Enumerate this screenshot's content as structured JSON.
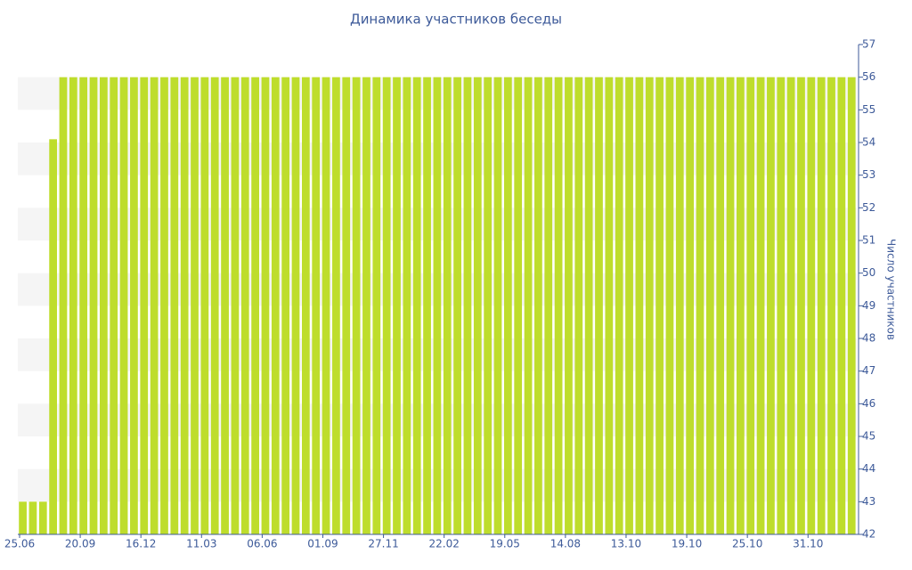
{
  "chart_data": {
    "type": "bar",
    "title": "Динамика участников беседы",
    "y_axis_label": "Число участников",
    "color": "#bedd2c",
    "categories": [
      "25.06",
      null,
      null,
      null,
      null,
      null,
      "20.09",
      null,
      null,
      null,
      null,
      null,
      "16.12",
      null,
      null,
      null,
      null,
      null,
      "11.03",
      null,
      null,
      null,
      null,
      null,
      "06.06",
      null,
      null,
      null,
      null,
      null,
      "01.09",
      null,
      null,
      null,
      null,
      null,
      "27.11",
      null,
      null,
      null,
      null,
      null,
      "22.02",
      null,
      null,
      null,
      null,
      null,
      "19.05",
      null,
      null,
      null,
      null,
      null,
      "14.08",
      null,
      null,
      null,
      null,
      null,
      "13.10",
      null,
      null,
      null,
      null,
      null,
      "19.10",
      null,
      null,
      null,
      null,
      null,
      "25.10",
      null,
      null,
      null,
      null,
      null,
      "31.10",
      null,
      null,
      null,
      null
    ],
    "values": [
      43,
      43,
      43,
      54.1,
      56,
      56,
      56,
      56,
      56,
      56,
      56,
      56,
      56,
      56,
      56,
      56,
      56,
      56,
      56,
      56,
      56,
      56,
      56,
      56,
      56,
      56,
      56,
      56,
      56,
      56,
      56,
      56,
      56,
      56,
      56,
      56,
      56,
      56,
      56,
      56,
      56,
      56,
      56,
      56,
      56,
      56,
      56,
      56,
      56,
      56,
      56,
      56,
      56,
      56,
      56,
      56,
      56,
      56,
      56,
      56,
      56,
      56,
      56,
      56,
      56,
      56,
      56,
      56,
      56,
      56,
      56,
      56,
      56,
      56,
      56,
      56,
      56,
      56,
      56,
      56,
      56,
      56,
      56
    ],
    "ylim": [
      42,
      57
    ],
    "yticks": [
      42,
      43,
      44,
      45,
      46,
      47,
      48,
      49,
      50,
      51,
      52,
      53,
      54,
      55,
      56,
      57
    ],
    "y_axis_side": "right",
    "banded_background": true
  }
}
